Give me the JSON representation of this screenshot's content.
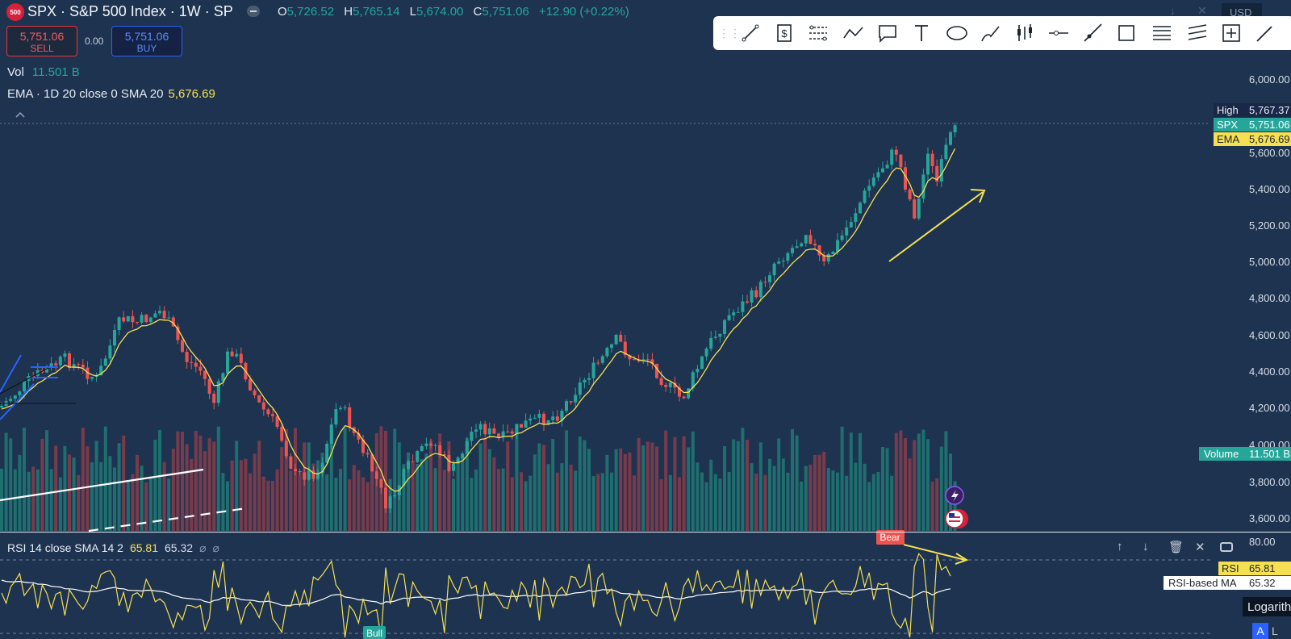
{
  "header": {
    "logo_text": "500",
    "symbol_title": "SPX · S&P 500 Index · 1W · SP",
    "ohlc": [
      {
        "key": "O",
        "value": "5,726.52"
      },
      {
        "key": "H",
        "value": "5,765.14"
      },
      {
        "key": "L",
        "value": "5,674.00"
      },
      {
        "key": "C",
        "value": "5,751.06"
      }
    ],
    "change": "+12.90 (+0.22%)",
    "currency": "USD"
  },
  "trade": {
    "sell_price": "5,751.06",
    "sell_label": "SELL",
    "spread": "0.00",
    "buy_price": "5,751.06",
    "buy_label": "BUY"
  },
  "legends": {
    "volume_label": "Vol",
    "volume_value": "11.501 B",
    "ema_label": "EMA · 1D 20 close 0 SMA 20",
    "ema_value": "5,676.69"
  },
  "toolbar": {
    "tools": [
      "trend-line",
      "long-position",
      "fib-retracement",
      "path",
      "callout",
      "text",
      "ellipse",
      "brush",
      "bars-pattern",
      "horizontal-ray",
      "ray",
      "rectangle",
      "parallel-channel",
      "fib-channel",
      "measure",
      "pencil"
    ]
  },
  "price_scale": {
    "ticks": [
      "6,000.00",
      "5,600.00",
      "5,400.00",
      "5,200.00",
      "5,000.00",
      "4,800.00",
      "4,600.00",
      "4,400.00",
      "4,200.00",
      "4,000.00",
      "3,800.00",
      "3,600.00"
    ],
    "tags": {
      "high_label": "High",
      "high_value": "5,767.37",
      "spx_label": "SPX",
      "spx_value": "5,751.06",
      "ema_label": "EMA",
      "ema_value": "5,676.69",
      "volume_label": "Volume",
      "volume_value": "11.501 B"
    }
  },
  "rsi": {
    "label": "RSI 14 close SMA 14 2",
    "value": "65.81",
    "ma_value": "65.32",
    "scale_top": "80.00",
    "tag_rsi_label": "RSI",
    "tag_rsi_value": "65.81",
    "tag_ma_label": "RSI-based MA",
    "tag_ma_value": "65.32",
    "bear_label": "Bear",
    "bull_label": "Bull"
  },
  "bottom": {
    "log_label": "Logarithmic",
    "auto_label": "A",
    "l_label": "L"
  },
  "colors": {
    "background": "#1e3350",
    "up": "#26a69a",
    "down": "#ef5350",
    "ema": "#f5e052",
    "rsi": "#f5e052",
    "rsi_ma": "#ffffff",
    "annotation_arrow": "#f5e052"
  }
}
